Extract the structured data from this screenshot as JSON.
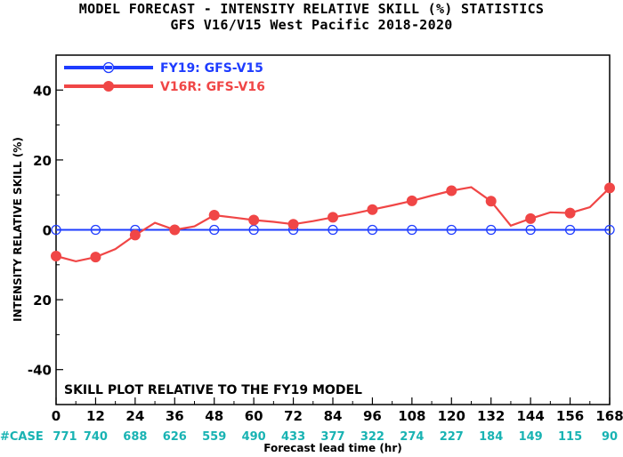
{
  "chart_data": {
    "type": "line",
    "title": "MODEL FORECAST - INTENSITY RELATIVE SKILL (%) STATISTICS",
    "subtitle": "GFS V16/V15 West Pacific 2018-2020",
    "xlabel": "Forecast lead time (hr)",
    "ylabel": "INTENSITY RELATIVE SKILL (%)",
    "xlim": [
      0,
      168
    ],
    "ylim": [
      -50,
      50
    ],
    "xticks": [
      "0",
      "12",
      "24",
      "36",
      "48",
      "60",
      "72",
      "84",
      "96",
      "108",
      "120",
      "132",
      "144",
      "156",
      "168"
    ],
    "yticks": [
      "40",
      "20",
      "0",
      "20",
      "-40"
    ],
    "grid": false,
    "legend_position": "top-left",
    "note": "SKILL PLOT RELATIVE TO THE FY19 MODEL",
    "cases_label": "#CASE",
    "cases": [
      "771",
      "740",
      "688",
      "626",
      "559",
      "490",
      "433",
      "377",
      "322",
      "274",
      "227",
      "184",
      "149",
      "115",
      "90"
    ],
    "series": [
      {
        "name": "FY19: GFS-V15",
        "color": "#1e3cff",
        "marker": "open-circle",
        "x": [
          0,
          12,
          24,
          36,
          48,
          60,
          72,
          84,
          96,
          108,
          120,
          132,
          144,
          156,
          168
        ],
        "y": [
          0,
          0,
          0,
          0,
          0,
          0,
          0,
          0,
          0,
          0,
          0,
          0,
          0,
          0,
          0
        ],
        "marker_x": [
          0,
          12,
          24,
          36,
          48,
          60,
          72,
          84,
          96,
          108,
          120,
          132,
          144,
          156,
          168
        ]
      },
      {
        "name": "V16R: GFS-V16",
        "color": "#f04646",
        "marker": "filled-circle",
        "x": [
          0,
          6,
          12,
          18,
          24,
          30,
          36,
          42,
          48,
          54,
          60,
          66,
          72,
          78,
          84,
          90,
          96,
          102,
          108,
          114,
          120,
          126,
          132,
          138,
          144,
          150,
          156,
          162,
          168
        ],
        "y": [
          -7.5,
          -9,
          -7.8,
          -5.5,
          -1.5,
          2,
          0,
          1,
          4.2,
          3.5,
          2.8,
          2.3,
          1.6,
          2.5,
          3.6,
          4.6,
          5.8,
          7,
          8.3,
          9.8,
          11.2,
          12.2,
          8.2,
          1.2,
          3.2,
          5,
          4.8,
          6.5,
          12
        ],
        "marker_x": [
          0,
          12,
          24,
          36,
          48,
          60,
          72,
          84,
          96,
          108,
          120,
          132,
          144,
          156,
          168
        ]
      }
    ]
  }
}
